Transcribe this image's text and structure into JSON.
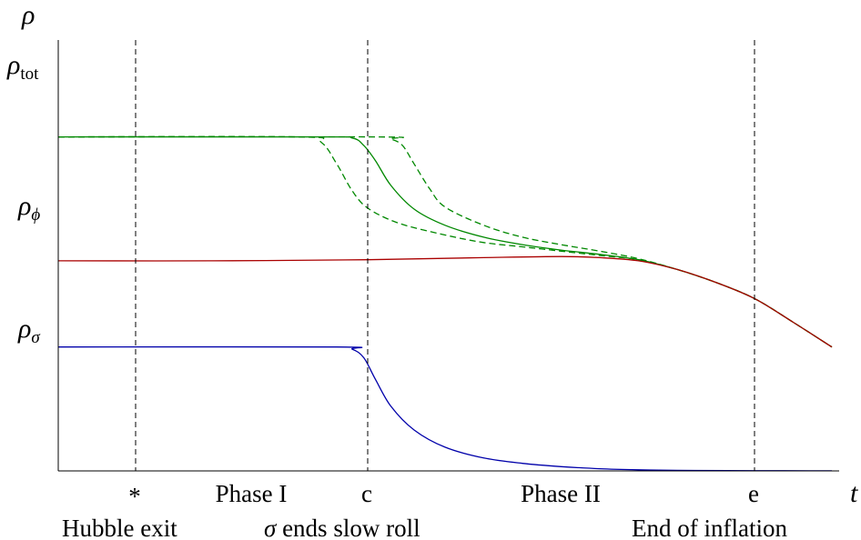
{
  "chart_data": {
    "type": "line",
    "title": "",
    "xlabel": "t",
    "ylabel": "ρ",
    "xlim": [
      0,
      10
    ],
    "ylim": [
      0,
      4
    ],
    "grid": false,
    "legend": "none",
    "y_tick_labels": [
      {
        "base": "ρ",
        "sub": "tot",
        "sub_italic": false,
        "value": 3.1
      },
      {
        "base": "ρ",
        "sub": "ϕ",
        "sub_italic": true,
        "value": 1.95
      },
      {
        "base": "ρ",
        "sub": "σ",
        "sub_italic": true,
        "value": 1.15
      }
    ],
    "markers": [
      {
        "x": 1.0,
        "symbol": "*",
        "caption": "Hubble exit"
      },
      {
        "x": 4.0,
        "symbol": "c",
        "caption_prefix": "σ",
        "caption": " ends slow roll"
      },
      {
        "x": 9.0,
        "symbol": "e",
        "caption": "End of inflation"
      }
    ],
    "phases": [
      {
        "label": "Phase I",
        "x": 2.5
      },
      {
        "label": "Phase II",
        "x": 6.5
      }
    ],
    "series": [
      {
        "style": "solid",
        "color": "#008800",
        "x": [
          0,
          3.4,
          3.8,
          3.95,
          4.1,
          4.3,
          4.6,
          5.0,
          5.5,
          6.0,
          6.5,
          7.0,
          7.5,
          8.0,
          8.5,
          9.0,
          9.5,
          10.0
        ],
        "y": [
          3.1,
          3.1,
          3.09,
          3.02,
          2.88,
          2.65,
          2.43,
          2.28,
          2.17,
          2.1,
          2.05,
          2.01,
          1.96,
          1.87,
          1.75,
          1.6,
          1.38,
          1.15
        ]
      },
      {
        "style": "dashed",
        "color": "#008800",
        "x": [
          0,
          3.1,
          3.4,
          3.6,
          3.8,
          4.0,
          4.4,
          5.0,
          5.5,
          6.0,
          6.5,
          7.0,
          7.5,
          8.0,
          8.5,
          9.0,
          9.5,
          10.0
        ],
        "y": [
          3.1,
          3.1,
          3.05,
          2.85,
          2.6,
          2.44,
          2.3,
          2.19,
          2.12,
          2.08,
          2.04,
          2.0,
          1.96,
          1.87,
          1.75,
          1.6,
          1.38,
          1.15
        ]
      },
      {
        "style": "dashed",
        "color": "#008800",
        "x": [
          0,
          4.1,
          4.3,
          4.45,
          4.6,
          4.8,
          5.0,
          5.5,
          6.0,
          6.5,
          7.0,
          7.5,
          8.0,
          8.5,
          9.0,
          9.5,
          10.0
        ],
        "y": [
          3.1,
          3.1,
          3.08,
          3.02,
          2.85,
          2.62,
          2.45,
          2.28,
          2.17,
          2.1,
          2.04,
          1.97,
          1.87,
          1.75,
          1.6,
          1.38,
          1.15
        ]
      },
      {
        "style": "solid",
        "color": "#aa0000",
        "x": [
          0,
          2.0,
          4.0,
          5.5,
          6.5,
          7.0,
          7.5,
          8.0,
          8.5,
          9.0,
          9.5,
          10.0
        ],
        "y": [
          1.95,
          1.95,
          1.96,
          1.98,
          1.99,
          1.98,
          1.95,
          1.87,
          1.75,
          1.6,
          1.38,
          1.15
        ]
      },
      {
        "style": "solid",
        "color": "#0000aa",
        "x": [
          0,
          3.6,
          3.8,
          3.95,
          4.1,
          4.3,
          4.6,
          5.0,
          5.5,
          6.0,
          6.5,
          7.0,
          7.5,
          8.0,
          9.0,
          10.0
        ],
        "y": [
          1.15,
          1.15,
          1.13,
          1.05,
          0.85,
          0.6,
          0.38,
          0.22,
          0.12,
          0.07,
          0.04,
          0.02,
          0.01,
          0.005,
          0.002,
          0.001
        ]
      }
    ]
  }
}
